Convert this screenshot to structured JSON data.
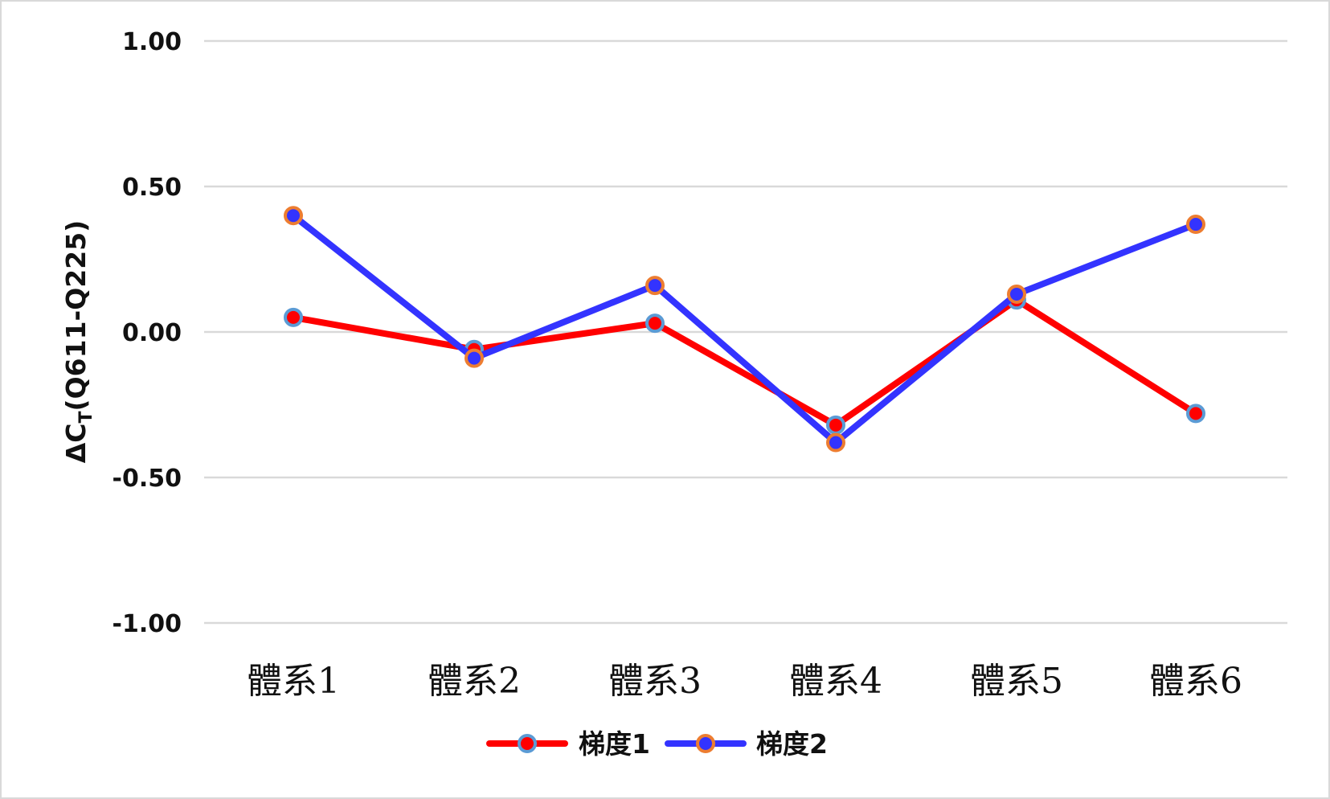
{
  "chart_data": {
    "type": "line",
    "categories": [
      "體系1",
      "體系2",
      "體系3",
      "體系4",
      "體系5",
      "體系6"
    ],
    "series": [
      {
        "name": "梯度1",
        "values": [
          0.05,
          -0.06,
          0.03,
          -0.32,
          0.11,
          -0.28
        ],
        "line_color": "#ff0000",
        "marker_fill": "#ff0000",
        "marker_edge": "#5b9bd5"
      },
      {
        "name": "梯度2",
        "values": [
          0.4,
          -0.09,
          0.16,
          -0.38,
          0.13,
          0.37
        ],
        "line_color": "#3333ff",
        "marker_fill": "#3333ff",
        "marker_edge": "#ed7d31"
      }
    ],
    "ylabel_main": "ΔC",
    "ylabel_sub": "T",
    "ylabel_rest": "(Q611-Q225)",
    "ylim": [
      -1.0,
      1.0
    ],
    "yticks": [
      "1.00",
      "0.50",
      "0.00",
      "-0.50",
      "-1.00"
    ],
    "ytick_values": [
      1.0,
      0.5,
      0.0,
      -0.5,
      -1.0
    ],
    "grid": true,
    "gridline_color": "#d9d9d9",
    "legend_placement": "bottom-center"
  }
}
